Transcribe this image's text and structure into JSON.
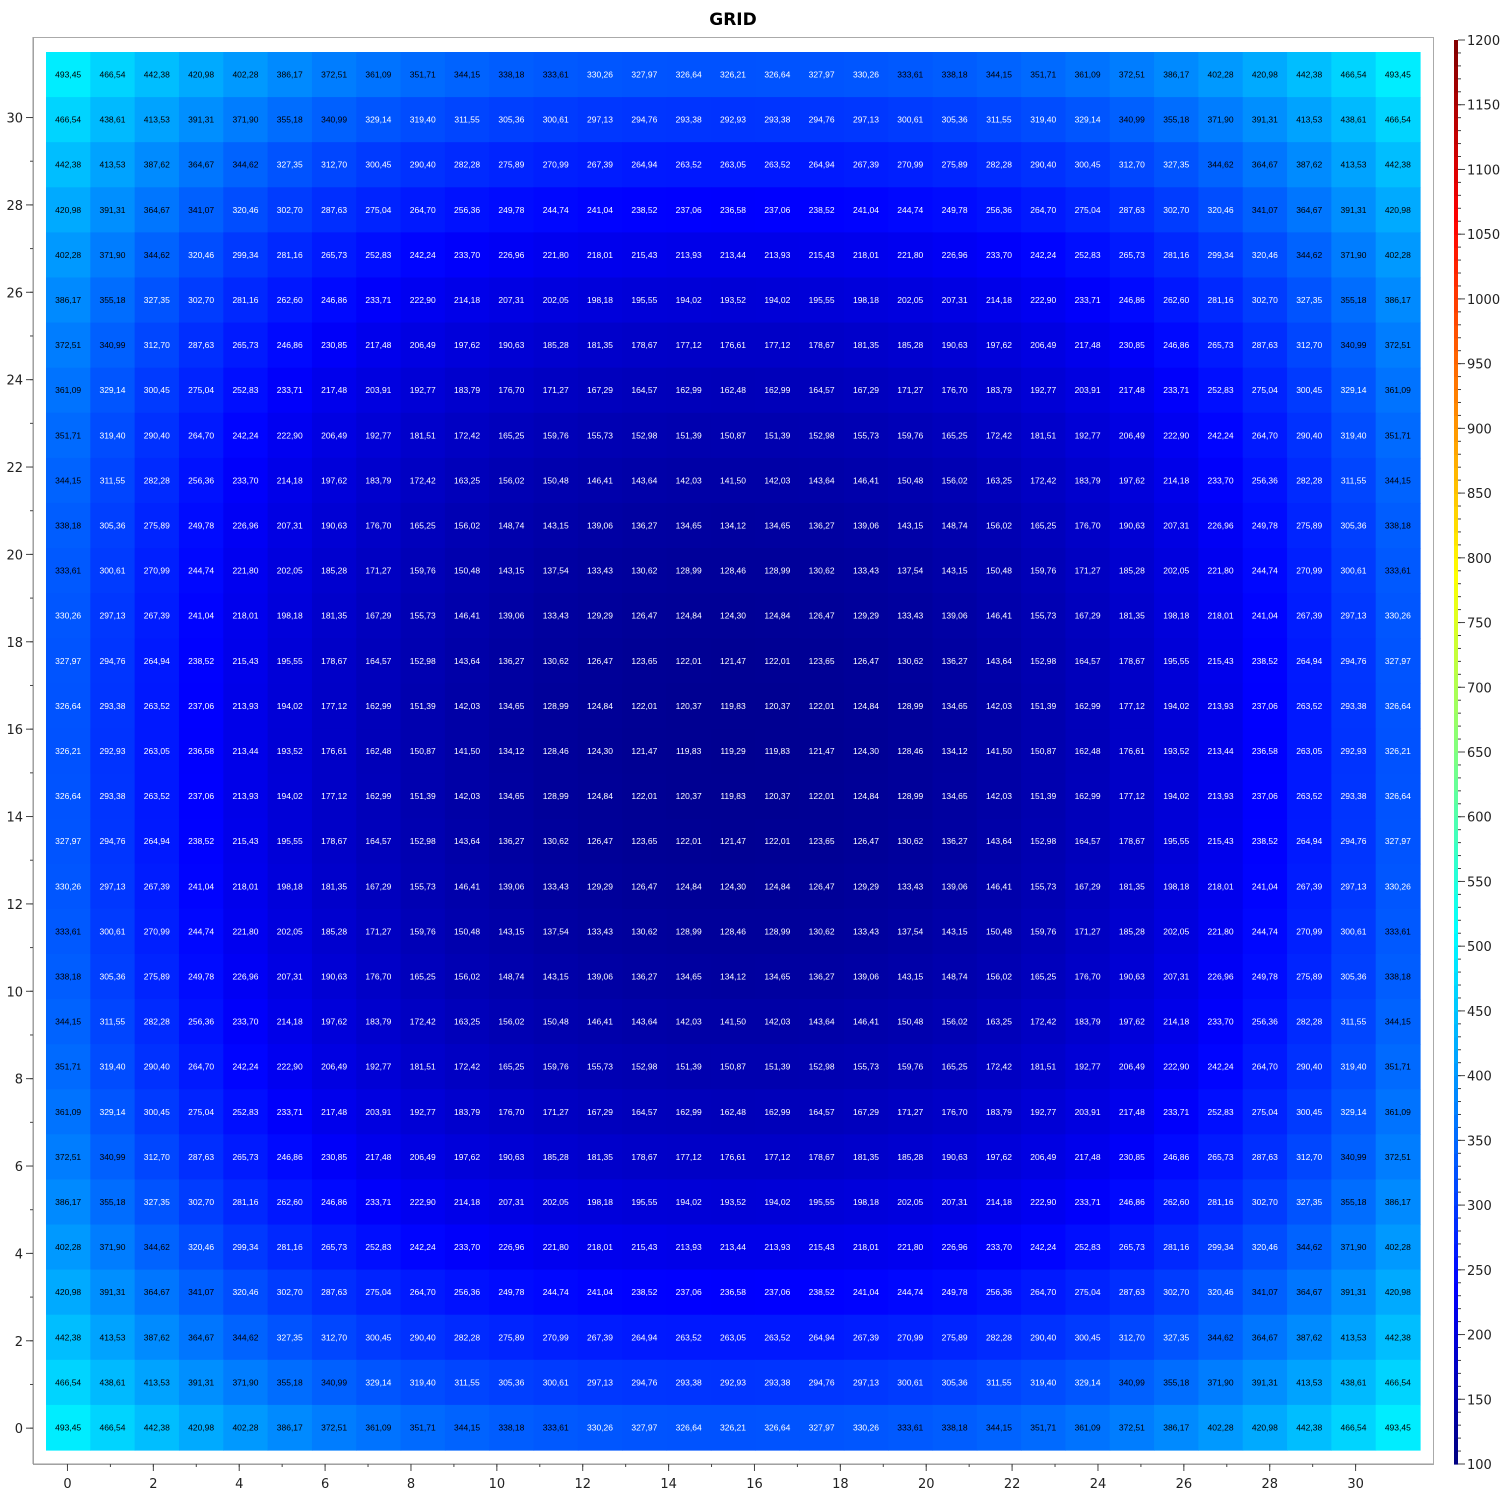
{
  "chart_data": {
    "type": "heatmap",
    "title": "GRID",
    "xlabel": "",
    "ylabel": "",
    "x_ticks": [
      0,
      2,
      4,
      6,
      8,
      10,
      12,
      14,
      16,
      18,
      20,
      22,
      24,
      26,
      28,
      30
    ],
    "y_ticks": [
      0,
      2,
      4,
      6,
      8,
      10,
      12,
      14,
      16,
      18,
      20,
      22,
      24,
      26,
      28,
      30
    ],
    "xlim": [
      -0.5,
      31.5
    ],
    "ylim": [
      -0.5,
      31.5
    ],
    "colorbar": {
      "min": 100,
      "max": 1200,
      "ticks": [
        100,
        150,
        200,
        250,
        300,
        350,
        400,
        450,
        500,
        550,
        600,
        650,
        700,
        750,
        800,
        850,
        900,
        950,
        1000,
        1050,
        1100,
        1150,
        1200
      ],
      "colormap": "jet",
      "placement": "right"
    },
    "grid": false,
    "rows_from_top": [
      [
        "493,45",
        "466,54",
        "442,38",
        "420,98",
        "402,28",
        "386,17",
        "372,51",
        "361,09",
        "351,71",
        "344,15",
        "338,18",
        "333,61",
        "330,26",
        "327,97",
        "326,64",
        "326,21",
        "326,64",
        "327,97",
        "330,26",
        "333,61",
        "338,18",
        "344,15",
        "351,71",
        "361,09",
        "372,51",
        "386,17",
        "402,28",
        "420,98",
        "442,38",
        "466,54",
        "493,45"
      ],
      [
        "466,54",
        "438,61",
        "413,53",
        "391,31",
        "371,90",
        "355,18",
        "340,99",
        "329,14",
        "319,40",
        "311,55",
        "305,36",
        "300,61",
        "297,13",
        "294,76",
        "293,38",
        "292,93",
        "293,38",
        "294,76",
        "297,13",
        "300,61",
        "305,36",
        "311,55",
        "319,40",
        "329,14",
        "340,99",
        "355,18",
        "371,90",
        "391,31",
        "413,53",
        "438,61",
        "466,54"
      ],
      [
        "442,38",
        "413,53",
        "387,62",
        "364,67",
        "344,62",
        "327,35",
        "312,70",
        "300,45",
        "290,40",
        "282,28",
        "275,89",
        "270,99",
        "267,39",
        "264,94",
        "263,52",
        "263,05",
        "263,52",
        "264,94",
        "267,39",
        "270,99",
        "275,89",
        "282,28",
        "290,40",
        "300,45",
        "312,70",
        "327,35",
        "344,62",
        "364,67",
        "387,62",
        "413,53",
        "442,38"
      ],
      [
        "420,98",
        "391,31",
        "364,67",
        "341,07",
        "320,46",
        "302,70",
        "287,63",
        "275,04",
        "264,70",
        "256,36",
        "249,78",
        "244,74",
        "241,04",
        "238,52",
        "237,06",
        "236,58",
        "237,06",
        "238,52",
        "241,04",
        "244,74",
        "249,78",
        "256,36",
        "264,70",
        "275,04",
        "287,63",
        "302,70",
        "320,46",
        "341,07",
        "364,67",
        "391,31",
        "420,98"
      ],
      [
        "402,28",
        "371,90",
        "344,62",
        "320,46",
        "299,34",
        "281,16",
        "265,73",
        "252,83",
        "242,24",
        "233,70",
        "226,96",
        "221,80",
        "218,01",
        "215,43",
        "213,93",
        "213,44",
        "213,93",
        "215,43",
        "218,01",
        "221,80",
        "226,96",
        "233,70",
        "242,24",
        "252,83",
        "265,73",
        "281,16",
        "299,34",
        "320,46",
        "344,62",
        "371,90",
        "402,28"
      ],
      [
        "386,17",
        "355,18",
        "327,35",
        "302,70",
        "281,16",
        "262,60",
        "246,86",
        "233,71",
        "222,90",
        "214,18",
        "207,31",
        "202,05",
        "198,18",
        "195,55",
        "194,02",
        "193,52",
        "194,02",
        "195,55",
        "198,18",
        "202,05",
        "207,31",
        "214,18",
        "222,90",
        "233,71",
        "246,86",
        "262,60",
        "281,16",
        "302,70",
        "327,35",
        "355,18",
        "386,17"
      ],
      [
        "372,51",
        "340,99",
        "312,70",
        "287,63",
        "265,73",
        "246,86",
        "230,85",
        "217,48",
        "206,49",
        "197,62",
        "190,63",
        "185,28",
        "181,35",
        "178,67",
        "177,12",
        "176,61",
        "177,12",
        "178,67",
        "181,35",
        "185,28",
        "190,63",
        "197,62",
        "206,49",
        "217,48",
        "230,85",
        "246,86",
        "265,73",
        "287,63",
        "312,70",
        "340,99",
        "372,51"
      ],
      [
        "361,09",
        "329,14",
        "300,45",
        "275,04",
        "252,83",
        "233,71",
        "217,48",
        "203,91",
        "192,77",
        "183,79",
        "176,70",
        "171,27",
        "167,29",
        "164,57",
        "162,99",
        "162,48",
        "162,99",
        "164,57",
        "167,29",
        "171,27",
        "176,70",
        "183,79",
        "192,77",
        "203,91",
        "217,48",
        "233,71",
        "252,83",
        "275,04",
        "300,45",
        "329,14",
        "361,09"
      ],
      [
        "351,71",
        "319,40",
        "290,40",
        "264,70",
        "242,24",
        "222,90",
        "206,49",
        "192,77",
        "181,51",
        "172,42",
        "165,25",
        "159,76",
        "155,73",
        "152,98",
        "151,39",
        "150,87",
        "151,39",
        "152,98",
        "155,73",
        "159,76",
        "165,25",
        "172,42",
        "181,51",
        "192,77",
        "206,49",
        "222,90",
        "242,24",
        "264,70",
        "290,40",
        "319,40",
        "351,71"
      ],
      [
        "344,15",
        "311,55",
        "282,28",
        "256,36",
        "233,70",
        "214,18",
        "197,62",
        "183,79",
        "172,42",
        "163,25",
        "156,02",
        "150,48",
        "146,41",
        "143,64",
        "142,03",
        "141,50",
        "142,03",
        "143,64",
        "146,41",
        "150,48",
        "156,02",
        "163,25",
        "172,42",
        "183,79",
        "197,62",
        "214,18",
        "233,70",
        "256,36",
        "282,28",
        "311,55",
        "344,15"
      ],
      [
        "338,18",
        "305,36",
        "275,89",
        "249,78",
        "226,96",
        "207,31",
        "190,63",
        "176,70",
        "165,25",
        "156,02",
        "148,74",
        "143,15",
        "139,06",
        "136,27",
        "134,65",
        "134,12",
        "134,65",
        "136,27",
        "139,06",
        "143,15",
        "148,74",
        "156,02",
        "165,25",
        "176,70",
        "190,63",
        "207,31",
        "226,96",
        "249,78",
        "275,89",
        "305,36",
        "338,18"
      ],
      [
        "333,61",
        "300,61",
        "270,99",
        "244,74",
        "221,80",
        "202,05",
        "185,28",
        "171,27",
        "159,76",
        "150,48",
        "143,15",
        "137,54",
        "133,43",
        "130,62",
        "128,99",
        "128,46",
        "128,99",
        "130,62",
        "133,43",
        "137,54",
        "143,15",
        "150,48",
        "159,76",
        "171,27",
        "185,28",
        "202,05",
        "221,80",
        "244,74",
        "270,99",
        "300,61",
        "333,61"
      ],
      [
        "330,26",
        "297,13",
        "267,39",
        "241,04",
        "218,01",
        "198,18",
        "181,35",
        "167,29",
        "155,73",
        "146,41",
        "139,06",
        "133,43",
        "129,29",
        "126,47",
        "124,84",
        "124,30",
        "124,84",
        "126,47",
        "129,29",
        "133,43",
        "139,06",
        "146,41",
        "155,73",
        "167,29",
        "181,35",
        "198,18",
        "218,01",
        "241,04",
        "267,39",
        "297,13",
        "330,26"
      ],
      [
        "327,97",
        "294,76",
        "264,94",
        "238,52",
        "215,43",
        "195,55",
        "178,67",
        "164,57",
        "152,98",
        "143,64",
        "136,27",
        "130,62",
        "126,47",
        "123,65",
        "122,01",
        "121,47",
        "122,01",
        "123,65",
        "126,47",
        "130,62",
        "136,27",
        "143,64",
        "152,98",
        "164,57",
        "178,67",
        "195,55",
        "215,43",
        "238,52",
        "264,94",
        "294,76",
        "327,97"
      ],
      [
        "326,64",
        "293,38",
        "263,52",
        "237,06",
        "213,93",
        "194,02",
        "177,12",
        "162,99",
        "151,39",
        "142,03",
        "134,65",
        "128,99",
        "124,84",
        "122,01",
        "120,37",
        "119,83",
        "120,37",
        "122,01",
        "124,84",
        "128,99",
        "134,65",
        "142,03",
        "151,39",
        "162,99",
        "177,12",
        "194,02",
        "213,93",
        "237,06",
        "263,52",
        "293,38",
        "326,64"
      ],
      [
        "326,21",
        "292,93",
        "263,05",
        "236,58",
        "213,44",
        "193,52",
        "176,61",
        "162,48",
        "150,87",
        "141,50",
        "134,12",
        "128,46",
        "124,30",
        "121,47",
        "119,83",
        "119,29",
        "119,83",
        "121,47",
        "124,30",
        "128,46",
        "134,12",
        "141,50",
        "150,87",
        "162,48",
        "176,61",
        "193,52",
        "213,44",
        "236,58",
        "263,05",
        "292,93",
        "326,21"
      ],
      [
        "326,64",
        "293,38",
        "263,52",
        "237,06",
        "213,93",
        "194,02",
        "177,12",
        "162,99",
        "151,39",
        "142,03",
        "134,65",
        "128,99",
        "124,84",
        "122,01",
        "120,37",
        "119,83",
        "120,37",
        "122,01",
        "124,84",
        "128,99",
        "134,65",
        "142,03",
        "151,39",
        "162,99",
        "177,12",
        "194,02",
        "213,93",
        "237,06",
        "263,52",
        "293,38",
        "326,64"
      ],
      [
        "327,97",
        "294,76",
        "264,94",
        "238,52",
        "215,43",
        "195,55",
        "178,67",
        "164,57",
        "152,98",
        "143,64",
        "136,27",
        "130,62",
        "126,47",
        "123,65",
        "122,01",
        "121,47",
        "122,01",
        "123,65",
        "126,47",
        "130,62",
        "136,27",
        "143,64",
        "152,98",
        "164,57",
        "178,67",
        "195,55",
        "215,43",
        "238,52",
        "264,94",
        "294,76",
        "327,97"
      ],
      [
        "330,26",
        "297,13",
        "267,39",
        "241,04",
        "218,01",
        "198,18",
        "181,35",
        "167,29",
        "155,73",
        "146,41",
        "139,06",
        "133,43",
        "129,29",
        "126,47",
        "124,84",
        "124,30",
        "124,84",
        "126,47",
        "129,29",
        "133,43",
        "139,06",
        "146,41",
        "155,73",
        "167,29",
        "181,35",
        "198,18",
        "218,01",
        "241,04",
        "267,39",
        "297,13",
        "330,26"
      ],
      [
        "333,61",
        "300,61",
        "270,99",
        "244,74",
        "221,80",
        "202,05",
        "185,28",
        "171,27",
        "159,76",
        "150,48",
        "143,15",
        "137,54",
        "133,43",
        "130,62",
        "128,99",
        "128,46",
        "128,99",
        "130,62",
        "133,43",
        "137,54",
        "143,15",
        "150,48",
        "159,76",
        "171,27",
        "185,28",
        "202,05",
        "221,80",
        "244,74",
        "270,99",
        "300,61",
        "333,61"
      ],
      [
        "338,18",
        "305,36",
        "275,89",
        "249,78",
        "226,96",
        "207,31",
        "190,63",
        "176,70",
        "165,25",
        "156,02",
        "148,74",
        "143,15",
        "139,06",
        "136,27",
        "134,65",
        "134,12",
        "134,65",
        "136,27",
        "139,06",
        "143,15",
        "148,74",
        "156,02",
        "165,25",
        "176,70",
        "190,63",
        "207,31",
        "226,96",
        "249,78",
        "275,89",
        "305,36",
        "338,18"
      ],
      [
        "344,15",
        "311,55",
        "282,28",
        "256,36",
        "233,70",
        "214,18",
        "197,62",
        "183,79",
        "172,42",
        "163,25",
        "156,02",
        "150,48",
        "146,41",
        "143,64",
        "142,03",
        "141,50",
        "142,03",
        "143,64",
        "146,41",
        "150,48",
        "156,02",
        "163,25",
        "172,42",
        "183,79",
        "197,62",
        "214,18",
        "233,70",
        "256,36",
        "282,28",
        "311,55",
        "344,15"
      ],
      [
        "351,71",
        "319,40",
        "290,40",
        "264,70",
        "242,24",
        "222,90",
        "206,49",
        "192,77",
        "181,51",
        "172,42",
        "165,25",
        "159,76",
        "155,73",
        "152,98",
        "151,39",
        "150,87",
        "151,39",
        "152,98",
        "155,73",
        "159,76",
        "165,25",
        "172,42",
        "181,51",
        "192,77",
        "206,49",
        "222,90",
        "242,24",
        "264,70",
        "290,40",
        "319,40",
        "351,71"
      ],
      [
        "361,09",
        "329,14",
        "300,45",
        "275,04",
        "252,83",
        "233,71",
        "217,48",
        "203,91",
        "192,77",
        "183,79",
        "176,70",
        "171,27",
        "167,29",
        "164,57",
        "162,99",
        "162,48",
        "162,99",
        "164,57",
        "167,29",
        "171,27",
        "176,70",
        "183,79",
        "192,77",
        "203,91",
        "217,48",
        "233,71",
        "252,83",
        "275,04",
        "300,45",
        "329,14",
        "361,09"
      ],
      [
        "372,51",
        "340,99",
        "312,70",
        "287,63",
        "265,73",
        "246,86",
        "230,85",
        "217,48",
        "206,49",
        "197,62",
        "190,63",
        "185,28",
        "181,35",
        "178,67",
        "177,12",
        "176,61",
        "177,12",
        "178,67",
        "181,35",
        "185,28",
        "190,63",
        "197,62",
        "206,49",
        "217,48",
        "230,85",
        "246,86",
        "265,73",
        "287,63",
        "312,70",
        "340,99",
        "372,51"
      ],
      [
        "386,17",
        "355,18",
        "327,35",
        "302,70",
        "281,16",
        "262,60",
        "246,86",
        "233,71",
        "222,90",
        "214,18",
        "207,31",
        "202,05",
        "198,18",
        "195,55",
        "194,02",
        "193,52",
        "194,02",
        "195,55",
        "198,18",
        "202,05",
        "207,31",
        "214,18",
        "222,90",
        "233,71",
        "246,86",
        "262,60",
        "281,16",
        "302,70",
        "327,35",
        "355,18",
        "386,17"
      ],
      [
        "402,28",
        "371,90",
        "344,62",
        "320,46",
        "299,34",
        "281,16",
        "265,73",
        "252,83",
        "242,24",
        "233,70",
        "226,96",
        "221,80",
        "218,01",
        "215,43",
        "213,93",
        "213,44",
        "213,93",
        "215,43",
        "218,01",
        "221,80",
        "226,96",
        "233,70",
        "242,24",
        "252,83",
        "265,73",
        "281,16",
        "299,34",
        "320,46",
        "344,62",
        "371,90",
        "402,28"
      ],
      [
        "420,98",
        "391,31",
        "364,67",
        "341,07",
        "320,46",
        "302,70",
        "287,63",
        "275,04",
        "264,70",
        "256,36",
        "249,78",
        "244,74",
        "241,04",
        "238,52",
        "237,06",
        "236,58",
        "237,06",
        "238,52",
        "241,04",
        "244,74",
        "249,78",
        "256,36",
        "264,70",
        "275,04",
        "287,63",
        "302,70",
        "320,46",
        "341,07",
        "364,67",
        "391,31",
        "420,98"
      ],
      [
        "442,38",
        "413,53",
        "387,62",
        "364,67",
        "344,62",
        "327,35",
        "312,70",
        "300,45",
        "290,40",
        "282,28",
        "275,89",
        "270,99",
        "267,39",
        "264,94",
        "263,52",
        "263,05",
        "263,52",
        "264,94",
        "267,39",
        "270,99",
        "275,89",
        "282,28",
        "290,40",
        "300,45",
        "312,70",
        "327,35",
        "344,62",
        "364,67",
        "387,62",
        "413,53",
        "442,38"
      ],
      [
        "466,54",
        "438,61",
        "413,53",
        "391,31",
        "371,90",
        "355,18",
        "340,99",
        "329,14",
        "319,40",
        "311,55",
        "305,36",
        "300,61",
        "297,13",
        "294,76",
        "293,38",
        "292,93",
        "293,38",
        "294,76",
        "297,13",
        "300,61",
        "305,36",
        "311,55",
        "319,40",
        "329,14",
        "340,99",
        "355,18",
        "371,90",
        "391,31",
        "413,53",
        "438,61",
        "466,54"
      ],
      [
        "493,45",
        "466,54",
        "442,38",
        "420,98",
        "402,28",
        "386,17",
        "372,51",
        "361,09",
        "351,71",
        "344,15",
        "338,18",
        "333,61",
        "330,26",
        "327,97",
        "326,64",
        "326,21",
        "326,64",
        "327,97",
        "330,26",
        "333,61",
        "338,18",
        "344,15",
        "351,71",
        "361,09",
        "372,51",
        "386,17",
        "402,28",
        "420,98",
        "442,38",
        "466,54",
        "493,45"
      ]
    ]
  }
}
